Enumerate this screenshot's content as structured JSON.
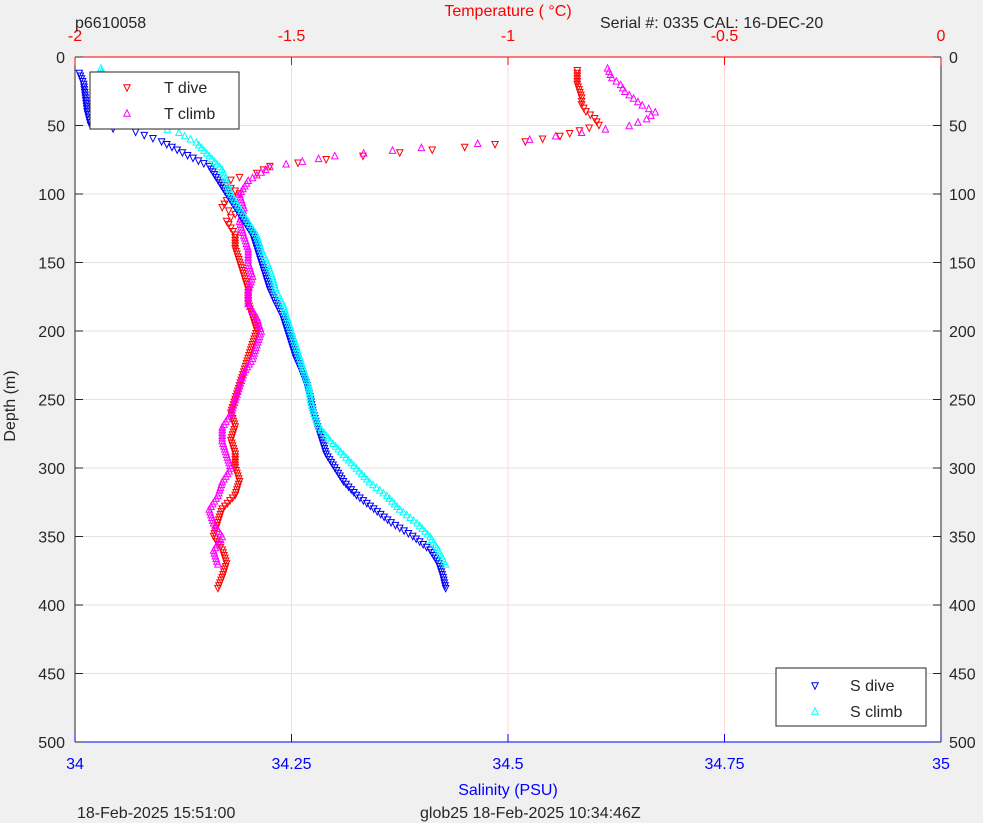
{
  "header": {
    "left": "p6610058",
    "serial": "Serial #: 0335  CAL: 16-DEC-20"
  },
  "footer": {
    "left": "18-Feb-2025 15:51:00",
    "center": "glob25 18-Feb-2025 10:34:46Z"
  },
  "colors": {
    "t_dive": "#ff0000",
    "t_climb": "#ff00ff",
    "s_dive": "#0000ff",
    "s_climb": "#00ffff",
    "top_axis": "#ff0000",
    "bottom_axis": "#0000ff"
  },
  "chart_data": {
    "type": "scatter",
    "title": "",
    "xlabel": "Salinity (PSU)",
    "x2label": "Temperature (    °C)",
    "ylabel": "Depth (m)",
    "xlim": [
      34,
      35
    ],
    "x2lim": [
      -2,
      0
    ],
    "ylim": [
      0,
      500
    ],
    "y_reversed": true,
    "grid": true,
    "xticks": [
      "34",
      "34.25",
      "34.5",
      "34.75",
      "35"
    ],
    "x2ticks": [
      "-2",
      "-1.5",
      "-1",
      "-0.5",
      "0"
    ],
    "yticks": [
      "0",
      "50",
      "100",
      "150",
      "200",
      "250",
      "300",
      "350",
      "400",
      "450",
      "500"
    ],
    "legend_temperature": {
      "placement": "top-left",
      "entries": [
        "T dive",
        "T climb"
      ]
    },
    "legend_salinity": {
      "placement": "bottom-right",
      "entries": [
        "S dive",
        "S climb"
      ]
    },
    "series": [
      {
        "name": "T dive",
        "axis": "top",
        "marker": "triangle-down",
        "points": [
          [
            -0.84,
            10
          ],
          [
            -0.84,
            20
          ],
          [
            -0.83,
            30
          ],
          [
            -0.83,
            35
          ],
          [
            -0.82,
            40
          ],
          [
            -0.8,
            45
          ],
          [
            -0.79,
            50
          ],
          [
            -0.88,
            58
          ],
          [
            -0.96,
            62
          ],
          [
            -1.1,
            66
          ],
          [
            -1.25,
            70
          ],
          [
            -1.42,
            75
          ],
          [
            -1.55,
            80
          ],
          [
            -1.58,
            85
          ],
          [
            -1.62,
            88
          ],
          [
            -1.66,
            92
          ],
          [
            -1.64,
            96
          ],
          [
            -1.62,
            100
          ],
          [
            -1.65,
            105
          ],
          [
            -1.66,
            110
          ],
          [
            -1.63,
            115
          ],
          [
            -1.65,
            120
          ],
          [
            -1.64,
            125
          ],
          [
            -1.63,
            130
          ],
          [
            -1.63,
            140
          ],
          [
            -1.62,
            150
          ],
          [
            -1.61,
            160
          ],
          [
            -1.6,
            170
          ],
          [
            -1.6,
            180
          ],
          [
            -1.59,
            190
          ],
          [
            -1.58,
            200
          ],
          [
            -1.59,
            210
          ],
          [
            -1.6,
            220
          ],
          [
            -1.61,
            230
          ],
          [
            -1.62,
            240
          ],
          [
            -1.63,
            250
          ],
          [
            -1.64,
            260
          ],
          [
            -1.63,
            270
          ],
          [
            -1.64,
            280
          ],
          [
            -1.63,
            290
          ],
          [
            -1.63,
            300
          ],
          [
            -1.62,
            310
          ],
          [
            -1.63,
            320
          ],
          [
            -1.66,
            330
          ],
          [
            -1.67,
            340
          ],
          [
            -1.68,
            350
          ],
          [
            -1.66,
            360
          ],
          [
            -1.65,
            370
          ],
          [
            -1.66,
            380
          ],
          [
            -1.67,
            388
          ]
        ]
      },
      {
        "name": "T climb",
        "axis": "top",
        "marker": "triangle-up",
        "points": [
          [
            -0.77,
            8
          ],
          [
            -0.76,
            15
          ],
          [
            -0.74,
            20
          ],
          [
            -0.73,
            25
          ],
          [
            -0.71,
            30
          ],
          [
            -0.69,
            35
          ],
          [
            -0.66,
            40
          ],
          [
            -0.68,
            45
          ],
          [
            -0.72,
            50
          ],
          [
            -0.83,
            55
          ],
          [
            -0.95,
            60
          ],
          [
            -1.07,
            63
          ],
          [
            -1.2,
            66
          ],
          [
            -1.4,
            72
          ],
          [
            -1.55,
            80
          ],
          [
            -1.6,
            90
          ],
          [
            -1.62,
            100
          ],
          [
            -1.61,
            110
          ],
          [
            -1.62,
            120
          ],
          [
            -1.61,
            130
          ],
          [
            -1.6,
            140
          ],
          [
            -1.6,
            150
          ],
          [
            -1.59,
            160
          ],
          [
            -1.6,
            170
          ],
          [
            -1.6,
            180
          ],
          [
            -1.58,
            190
          ],
          [
            -1.57,
            200
          ],
          [
            -1.58,
            210
          ],
          [
            -1.59,
            220
          ],
          [
            -1.61,
            230
          ],
          [
            -1.62,
            240
          ],
          [
            -1.63,
            250
          ],
          [
            -1.64,
            260
          ],
          [
            -1.66,
            270
          ],
          [
            -1.66,
            280
          ],
          [
            -1.65,
            290
          ],
          [
            -1.64,
            300
          ],
          [
            -1.66,
            310
          ],
          [
            -1.67,
            320
          ],
          [
            -1.69,
            330
          ],
          [
            -1.68,
            340
          ],
          [
            -1.66,
            350
          ],
          [
            -1.68,
            360
          ],
          [
            -1.67,
            370
          ]
        ]
      },
      {
        "name": "S dive",
        "axis": "bottom",
        "marker": "triangle-down",
        "points": [
          [
            34.005,
            12
          ],
          [
            34.01,
            20
          ],
          [
            34.012,
            30
          ],
          [
            34.014,
            40
          ],
          [
            34.018,
            50
          ],
          [
            34.07,
            55
          ],
          [
            34.1,
            62
          ],
          [
            34.13,
            72
          ],
          [
            34.155,
            80
          ],
          [
            34.165,
            90
          ],
          [
            34.175,
            100
          ],
          [
            34.185,
            110
          ],
          [
            34.195,
            120
          ],
          [
            34.205,
            130
          ],
          [
            34.21,
            140
          ],
          [
            34.215,
            150
          ],
          [
            34.22,
            160
          ],
          [
            34.225,
            170
          ],
          [
            34.232,
            180
          ],
          [
            34.24,
            190
          ],
          [
            34.245,
            200
          ],
          [
            34.25,
            210
          ],
          [
            34.255,
            220
          ],
          [
            34.262,
            230
          ],
          [
            34.268,
            240
          ],
          [
            34.272,
            250
          ],
          [
            34.275,
            260
          ],
          [
            34.28,
            270
          ],
          [
            34.285,
            280
          ],
          [
            34.29,
            290
          ],
          [
            34.3,
            300
          ],
          [
            34.31,
            310
          ],
          [
            34.325,
            320
          ],
          [
            34.345,
            330
          ],
          [
            34.365,
            340
          ],
          [
            34.39,
            350
          ],
          [
            34.41,
            360
          ],
          [
            34.42,
            370
          ],
          [
            34.425,
            380
          ],
          [
            34.428,
            388
          ]
        ]
      },
      {
        "name": "S climb",
        "axis": "bottom",
        "marker": "triangle-up",
        "points": [
          [
            34.03,
            8
          ],
          [
            34.032,
            15
          ],
          [
            34.033,
            25
          ],
          [
            34.035,
            32
          ],
          [
            34.05,
            40
          ],
          [
            34.08,
            48
          ],
          [
            34.12,
            55
          ],
          [
            34.14,
            62
          ],
          [
            34.155,
            72
          ],
          [
            34.17,
            82
          ],
          [
            34.175,
            90
          ],
          [
            34.18,
            100
          ],
          [
            34.19,
            110
          ],
          [
            34.2,
            120
          ],
          [
            34.21,
            130
          ],
          [
            34.215,
            140
          ],
          [
            34.222,
            150
          ],
          [
            34.228,
            160
          ],
          [
            34.232,
            170
          ],
          [
            34.24,
            180
          ],
          [
            34.245,
            190
          ],
          [
            34.25,
            200
          ],
          [
            34.255,
            210
          ],
          [
            34.26,
            220
          ],
          [
            34.265,
            230
          ],
          [
            34.27,
            240
          ],
          [
            34.272,
            250
          ],
          [
            34.276,
            260
          ],
          [
            34.282,
            270
          ],
          [
            34.295,
            280
          ],
          [
            34.31,
            290
          ],
          [
            34.325,
            300
          ],
          [
            34.34,
            310
          ],
          [
            34.36,
            320
          ],
          [
            34.375,
            330
          ],
          [
            34.395,
            340
          ],
          [
            34.41,
            350
          ],
          [
            34.42,
            360
          ],
          [
            34.428,
            370
          ]
        ]
      }
    ]
  }
}
